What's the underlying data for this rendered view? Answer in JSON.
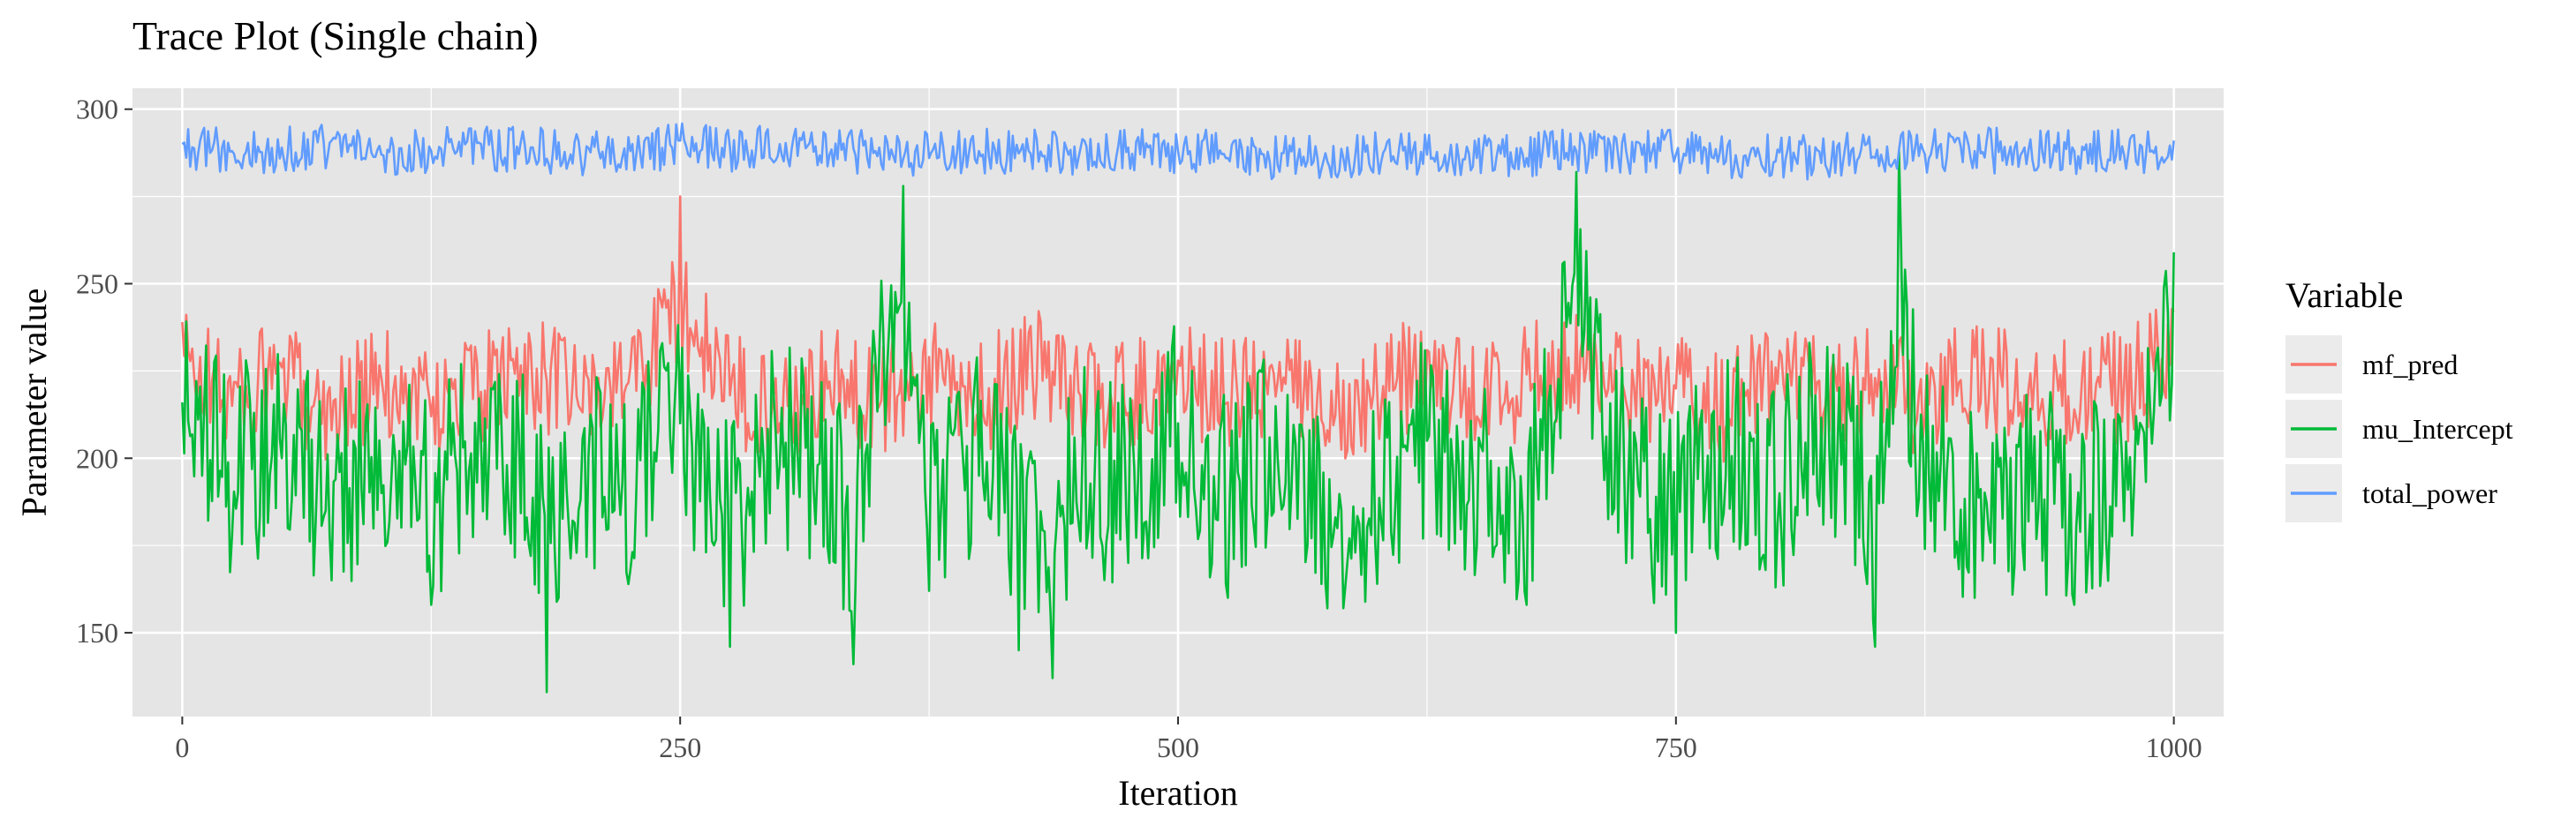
{
  "chart_data": {
    "type": "line",
    "title": "Trace Plot (Single chain)",
    "xlabel": "Iteration",
    "ylabel": "Parameter value",
    "xlim": [
      -25,
      1025
    ],
    "ylim": [
      126,
      306
    ],
    "x_ticks": [
      0,
      250,
      500,
      750,
      1000
    ],
    "y_ticks": [
      150,
      200,
      250,
      300
    ],
    "grid": true,
    "legend_title": "Variable",
    "legend_position": "right",
    "panel_background": "#e5e5e5",
    "series": [
      {
        "name": "mf_pred",
        "color": "#f8766d",
        "x": [
          0,
          25,
          50,
          75,
          100,
          125,
          150,
          175,
          200,
          225,
          250,
          275,
          300,
          325,
          350,
          375,
          400,
          425,
          450,
          475,
          500,
          525,
          550,
          575,
          600,
          625,
          650,
          675,
          700,
          725,
          750,
          775,
          800,
          825,
          850,
          875,
          900,
          925,
          950,
          975,
          1000
        ],
        "values": [
          239,
          215,
          226,
          208,
          223,
          212,
          219,
          232,
          214,
          226,
          275,
          218,
          210,
          222,
          215,
          229,
          211,
          236,
          219,
          213,
          228,
          216,
          222,
          208,
          219,
          231,
          212,
          224,
          241,
          216,
          220,
          209,
          226,
          215,
          223,
          212,
          229,
          218,
          214,
          221,
          242
        ],
        "band": [
          190,
          250
        ]
      },
      {
        "name": "mu_Intercept",
        "color": "#00ba38",
        "x": [
          0,
          10,
          25,
          50,
          75,
          100,
          125,
          150,
          175,
          183,
          200,
          225,
          250,
          275,
          300,
          325,
          337,
          350,
          362,
          375,
          400,
          420,
          437,
          450,
          475,
          500,
          525,
          550,
          575,
          600,
          625,
          650,
          675,
          700,
          725,
          750,
          775,
          800,
          825,
          850,
          862,
          875,
          900,
          925,
          950,
          975,
          1000
        ],
        "values": [
          216,
          195,
          178,
          200,
          165,
          190,
          158,
          205,
          172,
          133,
          188,
          168,
          210,
          146,
          198,
          170,
          141,
          230,
          278,
          162,
          195,
          145,
          137,
          182,
          170,
          210,
          160,
          200,
          157,
          164,
          205,
          175,
          158,
          282,
          170,
          150,
          195,
          163,
          210,
          146,
          288,
          174,
          160,
          168,
          158,
          182,
          259
        ],
        "band": [
          155,
          265
        ]
      },
      {
        "name": "total_power",
        "color": "#619cff",
        "x": [
          0,
          25,
          50,
          75,
          100,
          125,
          150,
          175,
          200,
          225,
          250,
          275,
          300,
          325,
          350,
          375,
          400,
          425,
          450,
          475,
          500,
          525,
          550,
          575,
          600,
          625,
          650,
          675,
          700,
          725,
          750,
          775,
          800,
          825,
          850,
          875,
          900,
          925,
          950,
          975,
          1000
        ],
        "values": [
          290,
          288,
          289,
          291,
          287,
          288,
          290,
          289,
          286,
          288,
          291,
          289,
          290,
          287,
          289,
          286,
          288,
          288,
          286,
          289,
          288,
          286,
          284,
          285,
          287,
          287,
          286,
          286,
          288,
          288,
          287,
          285,
          285,
          284,
          286,
          287,
          288,
          289,
          288,
          287,
          291
        ],
        "band": [
          276,
          300
        ]
      }
    ]
  }
}
